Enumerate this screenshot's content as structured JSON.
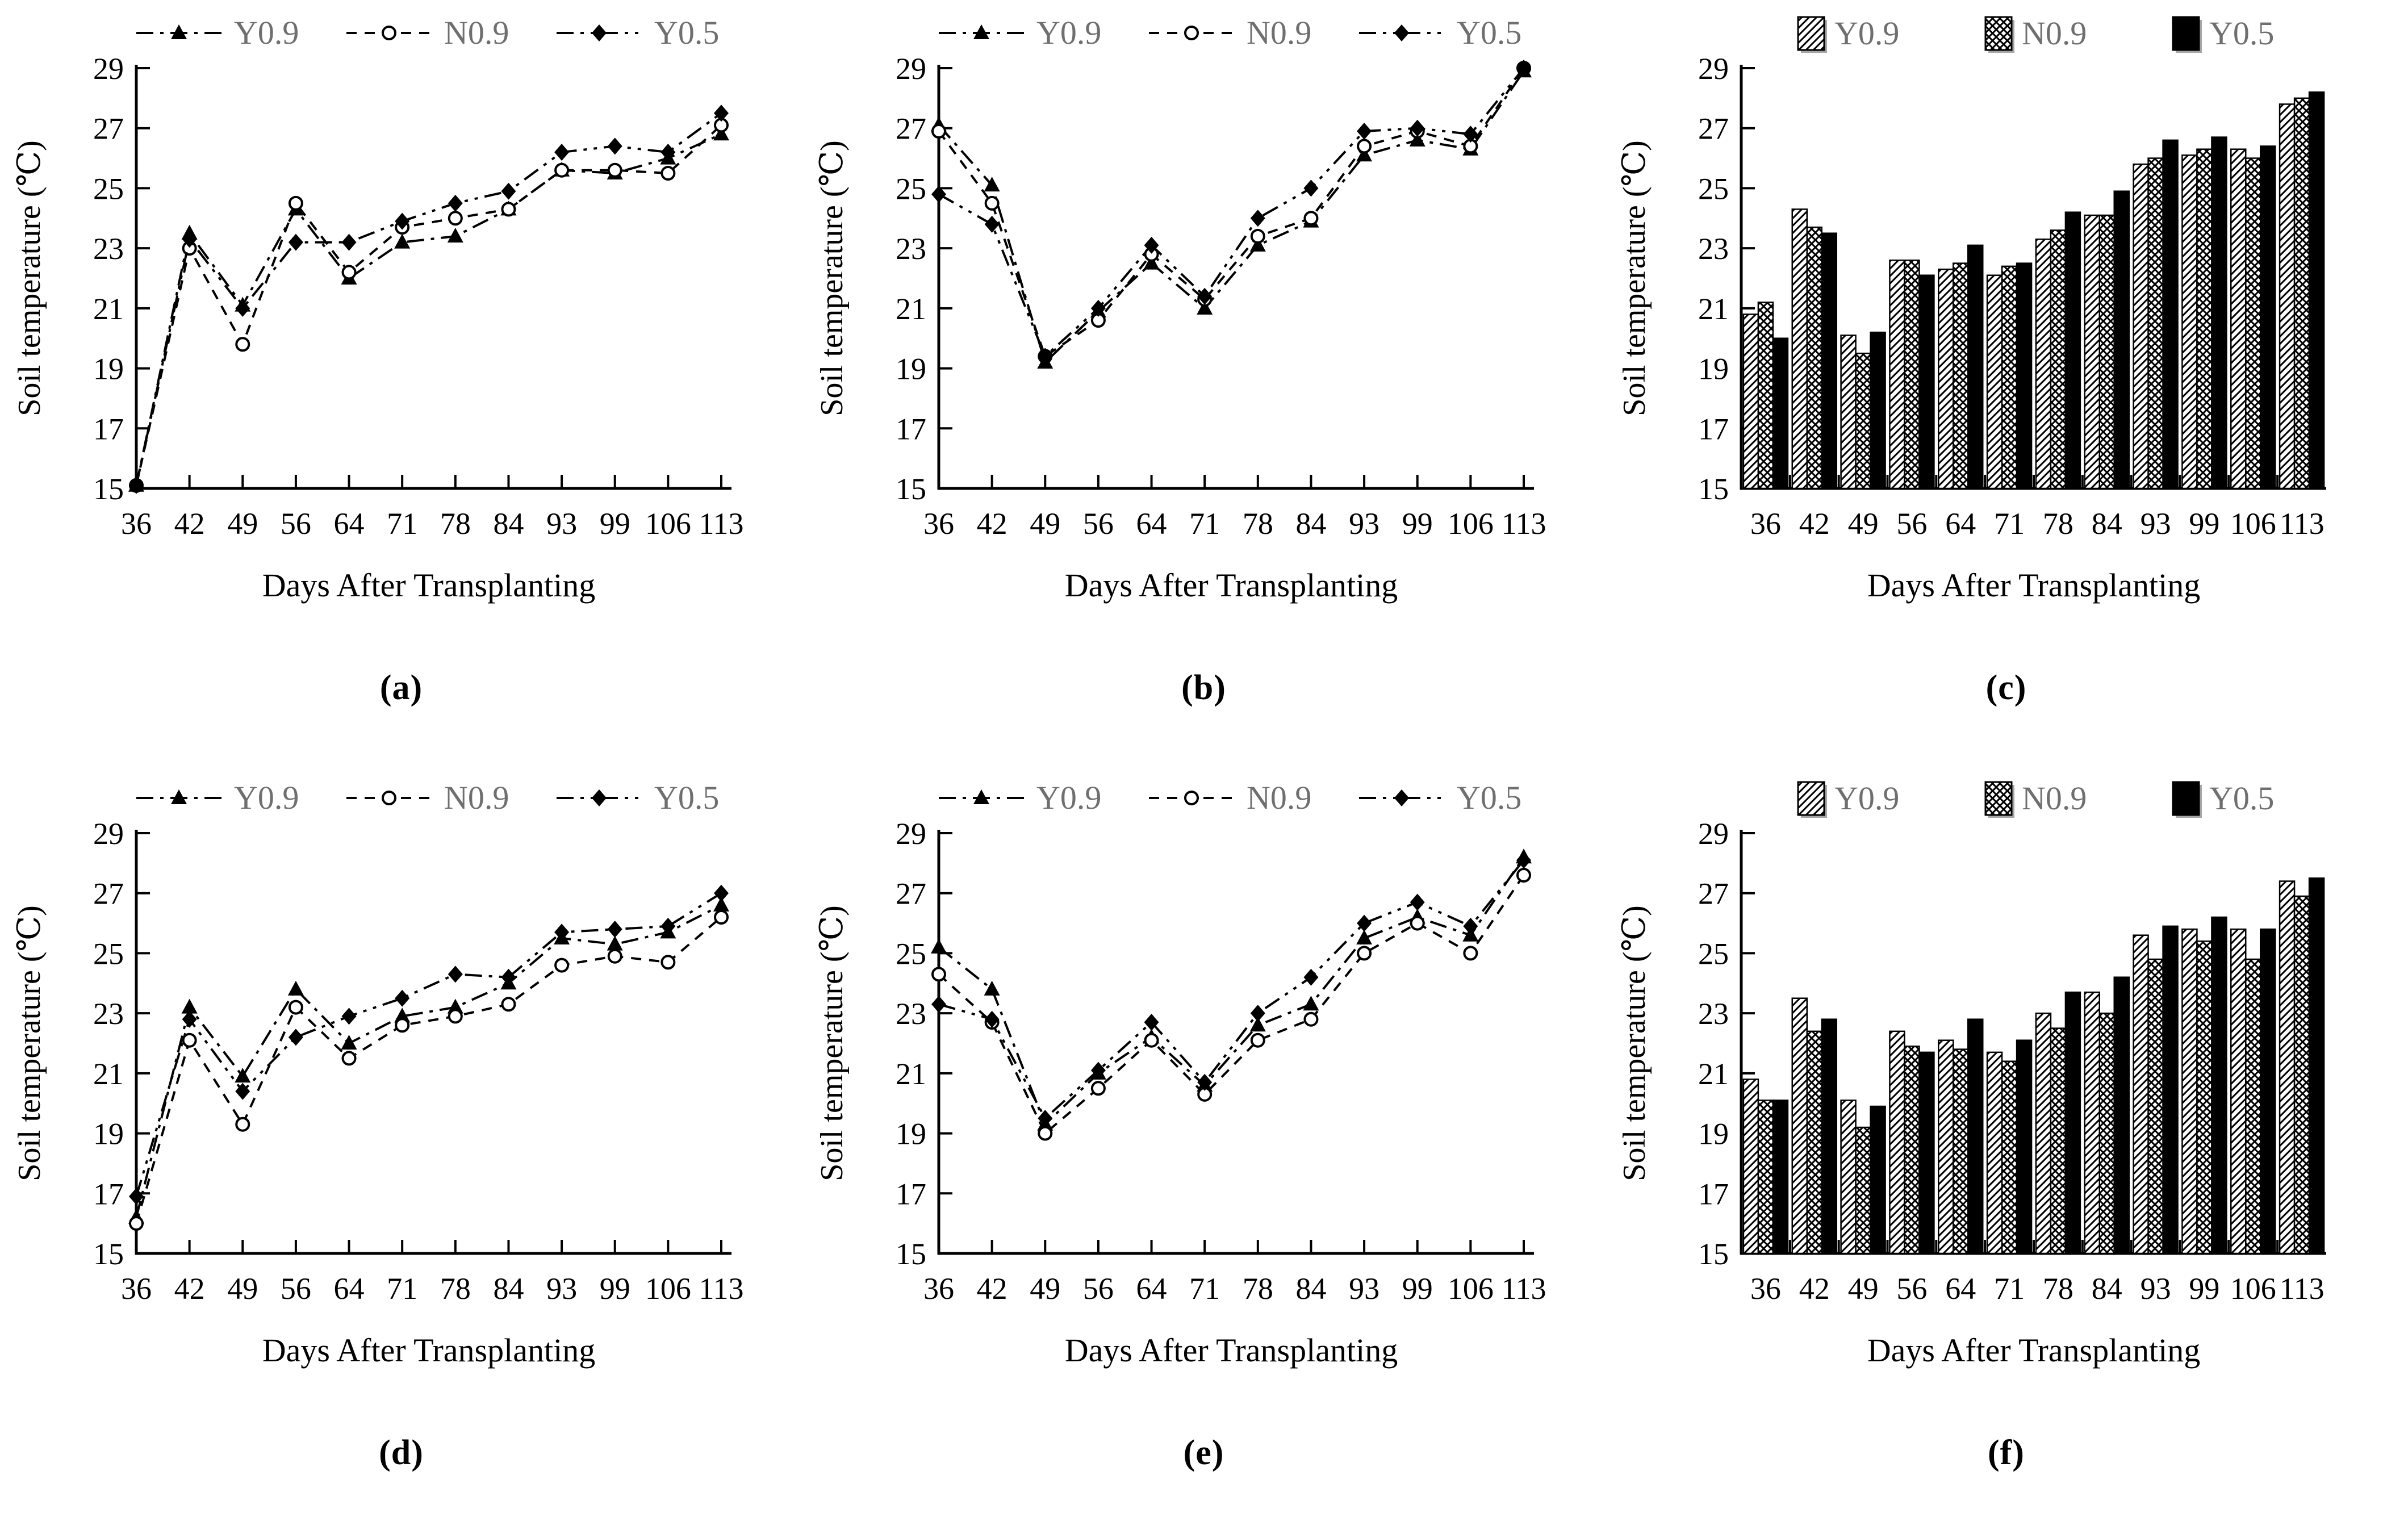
{
  "figure": {
    "ylabel": "Soil temperature (℃)",
    "xlabel": "Days After Transplanting",
    "legend_labels": [
      "Y0.9",
      "N0.9",
      "Y0.5"
    ],
    "colors": {
      "ink": "#000000",
      "legend_text": "#6f6f6f",
      "background": "#ffffff"
    }
  },
  "chart_data": [
    {
      "panel": "(a)",
      "type": "line",
      "title": "",
      "xlabel": "Days After Transplanting",
      "ylabel": "Soil temperature (℃)",
      "categories": [
        36,
        42,
        49,
        56,
        64,
        71,
        78,
        84,
        93,
        99,
        106,
        113
      ],
      "ylim": [
        15,
        29
      ],
      "yticks": [
        15,
        17,
        19,
        21,
        23,
        25,
        27,
        29
      ],
      "grid": false,
      "legend_position": "top",
      "series": [
        {
          "name": "Y0.9",
          "marker": "triangle-filled",
          "line": "dash-dot",
          "values": [
            15.1,
            23.5,
            21.1,
            24.3,
            22.0,
            23.2,
            23.4,
            24.3,
            25.6,
            25.5,
            26.0,
            26.8
          ]
        },
        {
          "name": "N0.9",
          "marker": "circle-open",
          "line": "dashed",
          "values": [
            15.1,
            23.0,
            19.8,
            24.5,
            22.2,
            23.7,
            24.0,
            24.3,
            25.6,
            25.6,
            25.5,
            27.1
          ]
        },
        {
          "name": "Y0.5",
          "marker": "diamond-filled",
          "line": "dash-dot-dot",
          "values": [
            15.1,
            23.3,
            21.0,
            23.2,
            23.2,
            23.9,
            24.5,
            24.9,
            26.2,
            26.4,
            26.2,
            27.5
          ]
        }
      ]
    },
    {
      "panel": "(b)",
      "type": "line",
      "title": "",
      "xlabel": "Days After Transplanting",
      "ylabel": "Soil temperature (℃)",
      "categories": [
        36,
        42,
        49,
        56,
        64,
        71,
        78,
        84,
        93,
        99,
        106,
        113
      ],
      "ylim": [
        15,
        29
      ],
      "yticks": [
        15,
        17,
        19,
        21,
        23,
        25,
        27,
        29
      ],
      "grid": false,
      "legend_position": "top",
      "series": [
        {
          "name": "Y0.9",
          "marker": "triangle-filled",
          "line": "dash-dot",
          "values": [
            27.1,
            25.1,
            19.2,
            20.9,
            22.5,
            21.0,
            23.1,
            23.9,
            26.1,
            26.6,
            26.3,
            28.9
          ]
        },
        {
          "name": "N0.9",
          "marker": "circle-open",
          "line": "dashed",
          "values": [
            26.9,
            24.5,
            19.4,
            20.6,
            22.8,
            21.3,
            23.4,
            24.0,
            26.4,
            26.9,
            26.4,
            29.0
          ]
        },
        {
          "name": "Y0.5",
          "marker": "diamond-filled",
          "line": "dash-dot-dot",
          "values": [
            24.8,
            23.8,
            19.4,
            21.0,
            23.1,
            21.4,
            24.0,
            25.0,
            26.9,
            27.0,
            26.8,
            29.0
          ]
        }
      ]
    },
    {
      "panel": "(c)",
      "type": "bar",
      "title": "",
      "xlabel": "Days After Transplanting",
      "ylabel": "Soil temperature (℃)",
      "categories": [
        36,
        42,
        49,
        56,
        64,
        71,
        78,
        84,
        93,
        99,
        106,
        113
      ],
      "ylim": [
        15,
        29
      ],
      "yticks": [
        15,
        17,
        19,
        21,
        23,
        25,
        27,
        29
      ],
      "grid": false,
      "legend_position": "top",
      "series": [
        {
          "name": "Y0.9",
          "pattern": "diagonal-hatch",
          "values": [
            20.8,
            24.3,
            20.1,
            22.6,
            22.3,
            22.1,
            23.3,
            24.1,
            25.8,
            26.1,
            26.3,
            27.8
          ]
        },
        {
          "name": "N0.9",
          "pattern": "cross-hatch",
          "values": [
            21.2,
            23.7,
            19.5,
            22.6,
            22.5,
            22.4,
            23.6,
            24.1,
            26.0,
            26.3,
            26.0,
            28.0
          ]
        },
        {
          "name": "Y0.5",
          "pattern": "solid",
          "values": [
            20.0,
            23.5,
            20.2,
            22.1,
            23.1,
            22.5,
            24.2,
            24.9,
            26.6,
            26.7,
            26.4,
            28.2
          ]
        }
      ]
    },
    {
      "panel": "(d)",
      "type": "line",
      "title": "",
      "xlabel": "Days After Transplanting",
      "ylabel": "Soil temperature (℃)",
      "categories": [
        36,
        42,
        49,
        56,
        64,
        71,
        78,
        84,
        93,
        99,
        106,
        113
      ],
      "ylim": [
        15,
        29
      ],
      "yticks": [
        15,
        17,
        19,
        21,
        23,
        25,
        27,
        29
      ],
      "grid": false,
      "legend_position": "top",
      "series": [
        {
          "name": "Y0.9",
          "marker": "triangle-filled",
          "line": "dash-dot",
          "values": [
            16.2,
            23.2,
            20.9,
            23.8,
            22.0,
            22.9,
            23.2,
            24.0,
            25.5,
            25.3,
            25.7,
            26.6
          ]
        },
        {
          "name": "N0.9",
          "marker": "circle-open",
          "line": "dashed",
          "values": [
            16.0,
            22.1,
            19.3,
            23.2,
            21.5,
            22.6,
            22.9,
            23.3,
            24.6,
            24.9,
            24.7,
            26.2
          ]
        },
        {
          "name": "Y0.5",
          "marker": "diamond-filled",
          "line": "dash-dot-dot",
          "values": [
            16.9,
            22.8,
            20.4,
            22.2,
            22.9,
            23.5,
            24.3,
            24.2,
            25.7,
            25.8,
            25.9,
            27.0
          ]
        }
      ]
    },
    {
      "panel": "(e)",
      "type": "line",
      "title": "",
      "xlabel": "Days After Transplanting",
      "ylabel": "Soil temperature (℃)",
      "categories": [
        36,
        42,
        49,
        56,
        64,
        71,
        78,
        84,
        93,
        99,
        106,
        113
      ],
      "ylim": [
        15,
        29
      ],
      "yticks": [
        15,
        17,
        19,
        21,
        23,
        25,
        27,
        29
      ],
      "grid": false,
      "legend_position": "top",
      "series": [
        {
          "name": "Y0.9",
          "marker": "triangle-filled",
          "line": "dash-dot",
          "values": [
            25.2,
            23.8,
            19.3,
            21.0,
            22.2,
            20.6,
            22.6,
            23.3,
            25.5,
            26.2,
            25.6,
            28.2
          ]
        },
        {
          "name": "N0.9",
          "marker": "circle-open",
          "line": "dashed",
          "values": [
            24.3,
            22.7,
            19.0,
            20.5,
            22.1,
            20.3,
            22.1,
            22.8,
            25.0,
            26.0,
            25.0,
            27.6
          ]
        },
        {
          "name": "Y0.5",
          "marker": "diamond-filled",
          "line": "dash-dot-dot",
          "values": [
            23.3,
            22.8,
            19.5,
            21.1,
            22.7,
            20.7,
            23.0,
            24.2,
            26.0,
            26.7,
            25.9,
            28.1
          ]
        }
      ]
    },
    {
      "panel": "(f)",
      "type": "bar",
      "title": "",
      "xlabel": "Days After Transplanting",
      "ylabel": "Soil temperature (℃)",
      "categories": [
        36,
        42,
        49,
        56,
        64,
        71,
        78,
        84,
        93,
        99,
        106,
        113
      ],
      "ylim": [
        15,
        29
      ],
      "yticks": [
        15,
        17,
        19,
        21,
        23,
        25,
        27,
        29
      ],
      "grid": false,
      "legend_position": "top",
      "series": [
        {
          "name": "Y0.9",
          "pattern": "diagonal-hatch",
          "values": [
            20.8,
            23.5,
            20.1,
            22.4,
            22.1,
            21.7,
            23.0,
            23.7,
            25.6,
            25.8,
            25.8,
            27.4
          ]
        },
        {
          "name": "N0.9",
          "pattern": "cross-hatch",
          "values": [
            20.1,
            22.4,
            19.2,
            21.9,
            21.8,
            21.4,
            22.5,
            23.0,
            24.8,
            25.4,
            24.8,
            26.9
          ]
        },
        {
          "name": "Y0.5",
          "pattern": "solid",
          "values": [
            20.1,
            22.8,
            19.9,
            21.7,
            22.8,
            22.1,
            23.7,
            24.2,
            25.9,
            26.2,
            25.8,
            27.5
          ]
        }
      ]
    }
  ]
}
